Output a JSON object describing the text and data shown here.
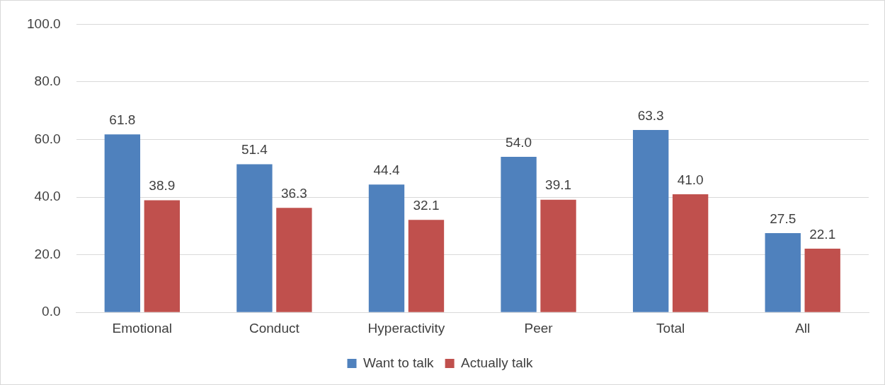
{
  "chart_data": {
    "type": "bar",
    "categories": [
      "Emotional",
      "Conduct",
      "Hyperactivity",
      "Peer",
      "Total",
      "All"
    ],
    "series": [
      {
        "name": "Want to talk",
        "color": "#4f81bd",
        "values": [
          61.8,
          51.4,
          44.4,
          54.0,
          63.3,
          27.5
        ],
        "value_labels": [
          "61.8",
          "51.4",
          "44.4",
          "54.0",
          "63.3",
          "27.5"
        ]
      },
      {
        "name": "Actually talk",
        "color": "#c0504d",
        "values": [
          38.9,
          36.3,
          32.1,
          39.1,
          41.0,
          22.1
        ],
        "value_labels": [
          "38.9",
          "36.3",
          "32.1",
          "39.1",
          "41.0",
          "22.1"
        ]
      }
    ],
    "ylim": [
      0,
      100
    ],
    "yticks": [
      {
        "value": 0,
        "label": "0.0"
      },
      {
        "value": 20,
        "label": "20.0"
      },
      {
        "value": 40,
        "label": "40.0"
      },
      {
        "value": 60,
        "label": "60.0"
      },
      {
        "value": 80,
        "label": "80.0"
      },
      {
        "value": 100,
        "label": "100.0"
      }
    ],
    "grid": "y",
    "legend": "bottom"
  }
}
